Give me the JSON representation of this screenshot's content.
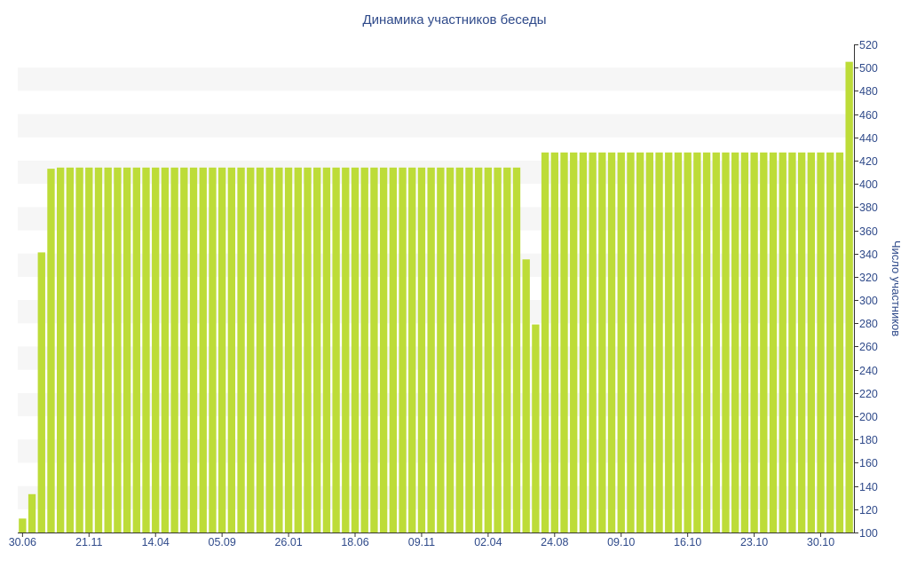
{
  "colors": {
    "bar": "#bddc38",
    "band": "#f6f6f6",
    "text": "#2f4a8a",
    "axis": "#333333"
  },
  "chart_data": {
    "type": "bar",
    "title": "Динамика участников беседы",
    "ylabel": "Число участников",
    "ylim": [
      100,
      520
    ],
    "yticks": [
      100,
      120,
      140,
      160,
      180,
      200,
      220,
      240,
      260,
      280,
      300,
      320,
      340,
      360,
      380,
      400,
      420,
      440,
      460,
      480,
      500,
      520
    ],
    "xtick_labels": [
      {
        "label": "30.06",
        "index": 0
      },
      {
        "label": "21.11",
        "index": 7
      },
      {
        "label": "14.04",
        "index": 14
      },
      {
        "label": "05.09",
        "index": 21
      },
      {
        "label": "26.01",
        "index": 28
      },
      {
        "label": "18.06",
        "index": 35
      },
      {
        "label": "09.11",
        "index": 42
      },
      {
        "label": "02.04",
        "index": 49
      },
      {
        "label": "24.08",
        "index": 56
      },
      {
        "label": "09.10",
        "index": 63
      },
      {
        "label": "16.10",
        "index": 70
      },
      {
        "label": "23.10",
        "index": 77
      },
      {
        "label": "30.10",
        "index": 84
      }
    ],
    "values": [
      112,
      133,
      341,
      413,
      414,
      414,
      414,
      414,
      414,
      414,
      414,
      414,
      414,
      414,
      414,
      414,
      414,
      414,
      414,
      414,
      414,
      414,
      414,
      414,
      414,
      414,
      414,
      414,
      414,
      414,
      414,
      414,
      414,
      414,
      414,
      414,
      414,
      414,
      414,
      414,
      414,
      414,
      414,
      414,
      414,
      414,
      414,
      414,
      414,
      414,
      414,
      414,
      414,
      335,
      279,
      427,
      427,
      427,
      427,
      427,
      427,
      427,
      427,
      427,
      427,
      427,
      427,
      427,
      427,
      427,
      427,
      427,
      427,
      427,
      427,
      427,
      427,
      427,
      427,
      427,
      427,
      427,
      427,
      427,
      427,
      427,
      427,
      505
    ]
  }
}
